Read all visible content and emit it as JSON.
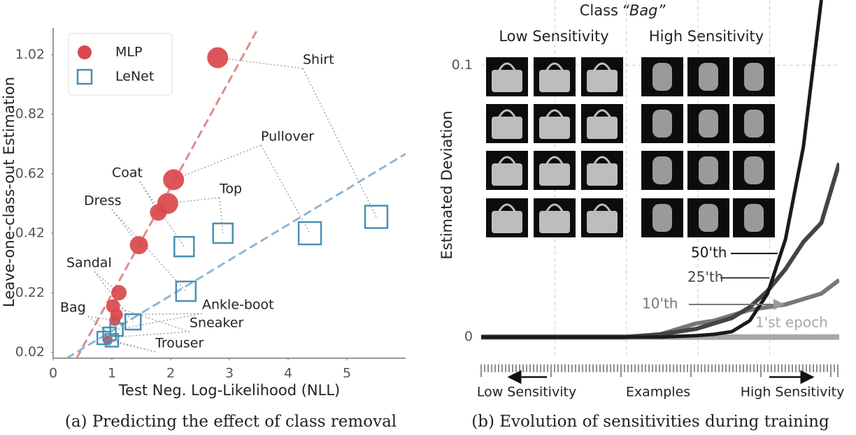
{
  "chart_data": [
    {
      "type": "scatter",
      "xlabel": "Test Neg. Log-Likelihood (NLL)",
      "ylabel": "Leave-one-class-out Estimation",
      "caption": "(a) Predicting the effect of class removal",
      "xlim": [
        0,
        6
      ],
      "ylim": [
        0,
        1.11
      ],
      "xticks": [
        0,
        1,
        2,
        3,
        4,
        5
      ],
      "yticks": [
        0.02,
        0.22,
        0.42,
        0.62,
        0.82,
        1.02
      ],
      "legend": "upper left",
      "series": [
        {
          "name": "MLP",
          "color": "#d9484b",
          "marker": "circle",
          "x": [
            2.8,
            2.05,
            1.95,
            1.79,
            1.46,
            1.12,
            1.02,
            1.08,
            1.05,
            0.93
          ],
          "values": [
            1.01,
            0.6,
            0.52,
            0.49,
            0.38,
            0.22,
            0.175,
            0.146,
            0.127,
            0.06
          ],
          "sizes": [
            15,
            15,
            15,
            12,
            13,
            11,
            10,
            9,
            8,
            7
          ]
        },
        {
          "name": "LeNet",
          "color": "#4a8fb5",
          "marker": "square",
          "x": [
            5.5,
            4.37,
            2.89,
            2.23,
            2.26,
            1.36,
            1.08,
            0.96,
            0.86,
            1.0
          ],
          "values": [
            0.475,
            0.42,
            0.42,
            0.375,
            0.225,
            0.122,
            0.096,
            0.082,
            0.068,
            0.06
          ],
          "sizes": [
            32,
            32,
            28,
            28,
            28,
            22,
            18,
            18,
            18,
            18
          ]
        }
      ],
      "fit_lines": [
        {
          "color": "#e28a8a",
          "x": [
            0.4,
            3.52
          ],
          "values": [
            0,
            1.12
          ]
        },
        {
          "color": "#8db7d6",
          "x": [
            0.23,
            6
          ],
          "values": [
            0,
            0.687
          ]
        }
      ],
      "annotations": [
        "Shirt",
        "Pullover",
        "Coat",
        "Top",
        "Dress",
        "Sandal",
        "Bag",
        "Ankle-boot",
        "Sneaker",
        "Trouser"
      ]
    },
    {
      "type": "line",
      "title": "Class",
      "title_emph": "“Bag”",
      "panel_titles": [
        "Low Sensitivity",
        "High Sensitivity"
      ],
      "ylabel": "Estimated Deviation",
      "xlabel": "Examples",
      "x_annotations": [
        "Low Sensitivity",
        "High Sensitivity"
      ],
      "caption": "(b) Evolution of sensitivities during training",
      "xlim": [
        0,
        100
      ],
      "ylim": [
        -0.007,
        0.124
      ],
      "yticks": [
        0,
        0.1
      ],
      "grid": true,
      "x": [
        0,
        10,
        20,
        30,
        40,
        50,
        60,
        65,
        70,
        75,
        80,
        85,
        90,
        95,
        100
      ],
      "series": [
        {
          "name": "1'st epoch",
          "color": "#a8a8a8",
          "width": 8,
          "values": [
            0,
            0,
            0,
            0,
            0,
            0,
            0,
            0,
            0,
            0,
            0,
            0,
            0,
            0,
            0
          ]
        },
        {
          "name": "10'th",
          "color": "#777777",
          "width": 6,
          "values": [
            0,
            0,
            0,
            0,
            0,
            0.001,
            0.005,
            0.006,
            0.008,
            0.01,
            0.011,
            0.012,
            0.014,
            0.016,
            0.021
          ]
        },
        {
          "name": "25'th",
          "color": "#444444",
          "width": 6,
          "values": [
            0,
            0,
            0,
            0,
            0,
            0.001,
            0.003,
            0.005,
            0.007,
            0.011,
            0.017,
            0.025,
            0.035,
            0.042,
            0.064
          ]
        },
        {
          "name": "50'th",
          "color": "#1a1a1a",
          "width": 5,
          "values": [
            0,
            0,
            0,
            0,
            0,
            0,
            0.0005,
            0.001,
            0.002,
            0.006,
            0.016,
            0.036,
            0.07,
            0.124,
            null
          ]
        }
      ]
    }
  ]
}
